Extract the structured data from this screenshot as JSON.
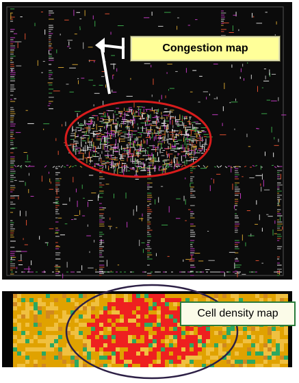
{
  "labels": {
    "congestion": "Congestion map",
    "cell_density": "Cell density map"
  },
  "colors": {
    "congestion_background": "#0b0b0b",
    "congestion_outline": "#d81c1c",
    "density_outline": "#2c1f45",
    "congestion_label_fill": "#ffff99",
    "density_label_border": "#2a7a3a",
    "density_low": "#e0a200",
    "density_mid": "#f0c040",
    "density_high": "#ee2020",
    "density_sparse": "#2ca860"
  },
  "icons": {
    "pointer": "white-arrow-pointer-icon"
  }
}
